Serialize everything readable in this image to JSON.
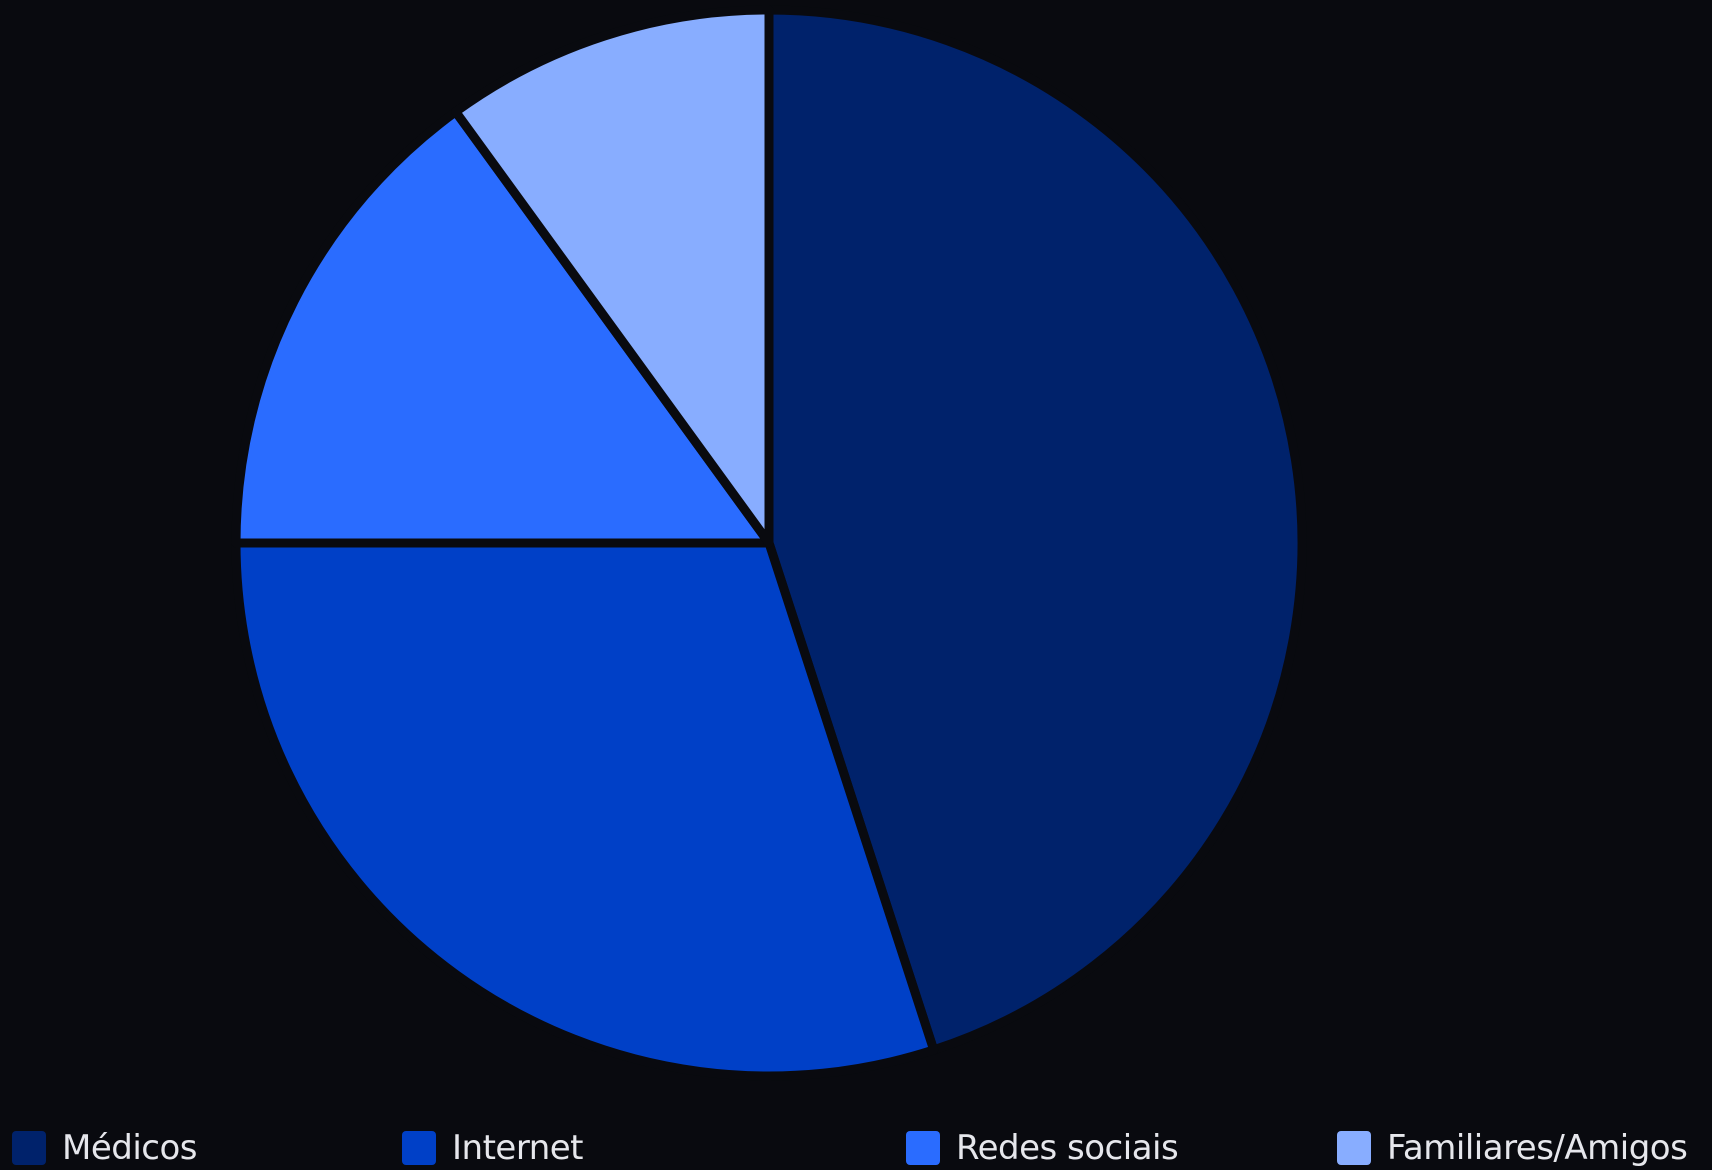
{
  "chart_data": {
    "type": "pie",
    "categories": [
      "Médicos",
      "Internet",
      "Redes sociais",
      "Familiares/Amigos"
    ],
    "values": [
      45,
      30,
      15,
      10
    ],
    "colors": [
      "#00226b",
      "#0040c7",
      "#2a6cff",
      "#88adff"
    ],
    "start_angle_deg": 0,
    "direction": "clockwise",
    "legend_position": "bottom"
  },
  "background_color": "#090a0f",
  "separator_color": "#090a0f"
}
